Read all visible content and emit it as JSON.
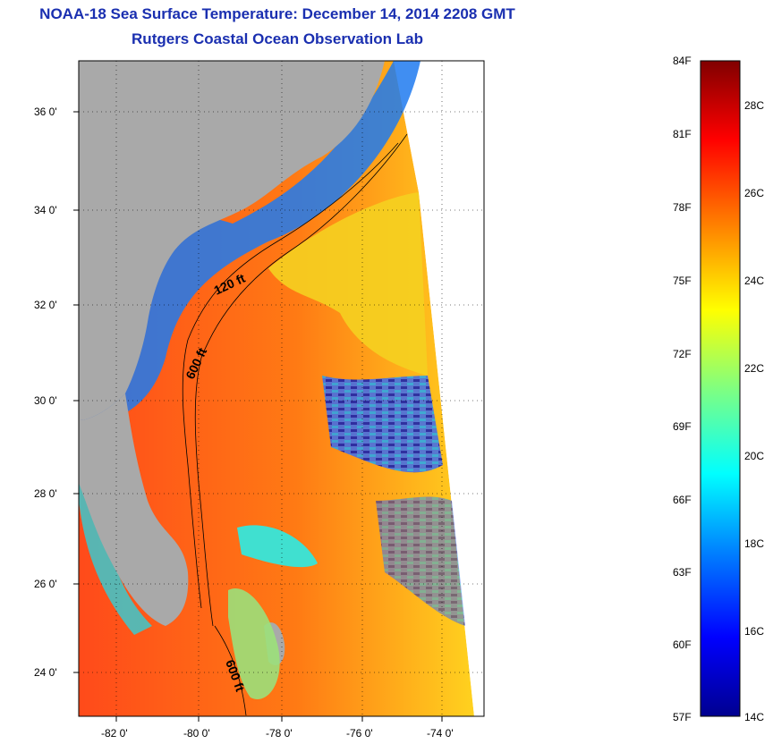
{
  "header": {
    "title_line1": "NOAA-18 Sea Surface Temperature:  December 14, 2014 2208 GMT",
    "title_line2": "Rutgers Coastal Ocean Observation Lab"
  },
  "map": {
    "lon_ticks": [
      "-82 0'",
      "-80 0'",
      "-78 0'",
      "-76 0'",
      "-74 0'"
    ],
    "lat_ticks": [
      "36 0'",
      "34 0'",
      "32 0'",
      "30 0'",
      "28 0'",
      "26 0'",
      "24 0'"
    ],
    "contour_labels": [
      "120 ft",
      "600 ft",
      "600 ft"
    ],
    "land_color": "#a9a9a9"
  },
  "colorbar": {
    "fahrenheit_labels": [
      "84F",
      "81F",
      "78F",
      "75F",
      "72F",
      "69F",
      "66F",
      "63F",
      "60F",
      "57F"
    ],
    "celsius_labels": [
      "28C",
      "26C",
      "24C",
      "22C",
      "20C",
      "18C",
      "16C",
      "14C"
    ],
    "colors": [
      "#00008f",
      "#0000ff",
      "#0080ff",
      "#00ffff",
      "#80ff80",
      "#ffff00",
      "#ff8000",
      "#ff0000",
      "#800000"
    ]
  }
}
